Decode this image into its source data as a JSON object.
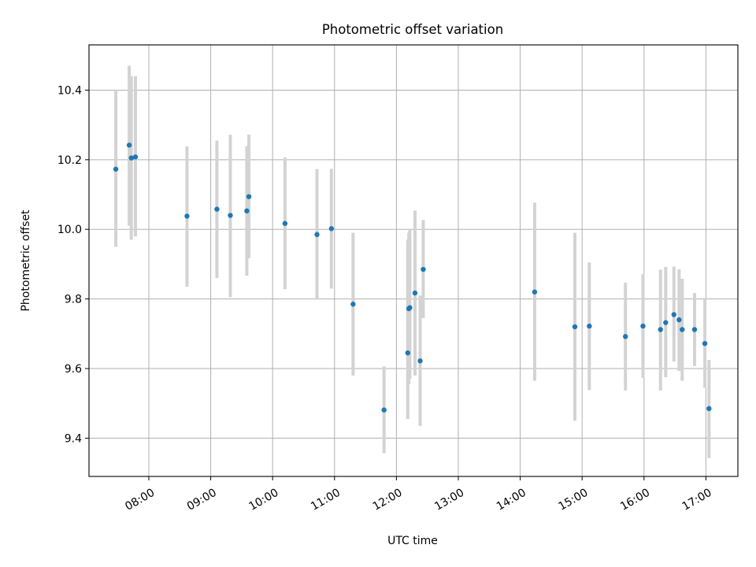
{
  "chart_data": {
    "type": "scatter",
    "title": "Photometric offset variation",
    "xlabel": "UTC time",
    "ylabel": "Photometric offset",
    "xlim": [
      "07:02",
      "17:31"
    ],
    "ylim": [
      9.29,
      10.53
    ],
    "grid": true,
    "x_ticks": [
      "08:00",
      "09:00",
      "10:00",
      "11:00",
      "12:00",
      "13:00",
      "14:00",
      "15:00",
      "16:00",
      "17:00"
    ],
    "y_ticks": [
      9.4,
      9.6,
      9.8,
      10.0,
      10.2,
      10.4
    ],
    "y_tick_labels": [
      "9.4",
      "9.6",
      "9.8",
      "10.0",
      "10.2",
      "10.4"
    ],
    "colors": {
      "points": "#1f77b4",
      "error_bars": "#d3d3d3",
      "grid": "#b0b0b0"
    },
    "points": [
      {
        "x": "07:28",
        "y": 10.173,
        "err_low": 9.95,
        "err_high": 10.4
      },
      {
        "x": "07:41",
        "y": 10.242,
        "err_low": 10.01,
        "err_high": 10.47
      },
      {
        "x": "07:43",
        "y": 10.205,
        "err_low": 9.97,
        "err_high": 10.44
      },
      {
        "x": "07:47",
        "y": 10.208,
        "err_low": 9.98,
        "err_high": 10.44
      },
      {
        "x": "08:37",
        "y": 10.038,
        "err_low": 9.835,
        "err_high": 10.238
      },
      {
        "x": "09:06",
        "y": 10.058,
        "err_low": 9.86,
        "err_high": 10.255
      },
      {
        "x": "09:19",
        "y": 10.04,
        "err_low": 9.805,
        "err_high": 10.272
      },
      {
        "x": "09:35",
        "y": 10.053,
        "err_low": 9.867,
        "err_high": 10.239
      },
      {
        "x": "09:37",
        "y": 10.094,
        "err_low": 9.917,
        "err_high": 10.272
      },
      {
        "x": "10:12",
        "y": 10.017,
        "err_low": 9.828,
        "err_high": 10.207
      },
      {
        "x": "10:43",
        "y": 9.985,
        "err_low": 9.8,
        "err_high": 10.173
      },
      {
        "x": "10:57",
        "y": 10.002,
        "err_low": 9.83,
        "err_high": 10.174
      },
      {
        "x": "11:18",
        "y": 9.785,
        "err_low": 9.58,
        "err_high": 9.99
      },
      {
        "x": "11:48",
        "y": 9.481,
        "err_low": 9.357,
        "err_high": 9.606
      },
      {
        "x": "12:11",
        "y": 9.645,
        "err_low": 9.455,
        "err_high": 9.97
      },
      {
        "x": "12:12",
        "y": 9.772,
        "err_low": 9.555,
        "err_high": 9.99
      },
      {
        "x": "12:13",
        "y": 9.775,
        "err_low": 9.57,
        "err_high": 10.0
      },
      {
        "x": "12:18",
        "y": 9.817,
        "err_low": 9.58,
        "err_high": 10.054
      },
      {
        "x": "12:23",
        "y": 9.622,
        "err_low": 9.435,
        "err_high": 9.81
      },
      {
        "x": "12:26",
        "y": 9.885,
        "err_low": 9.745,
        "err_high": 10.027
      },
      {
        "x": "14:14",
        "y": 9.82,
        "err_low": 9.565,
        "err_high": 10.077
      },
      {
        "x": "14:53",
        "y": 9.72,
        "err_low": 9.45,
        "err_high": 9.99
      },
      {
        "x": "15:07",
        "y": 9.722,
        "err_low": 9.538,
        "err_high": 9.905
      },
      {
        "x": "15:42",
        "y": 9.692,
        "err_low": 9.537,
        "err_high": 9.847
      },
      {
        "x": "15:59",
        "y": 9.722,
        "err_low": 9.573,
        "err_high": 9.871
      },
      {
        "x": "16:16",
        "y": 9.712,
        "err_low": 9.537,
        "err_high": 9.884
      },
      {
        "x": "16:21",
        "y": 9.732,
        "err_low": 9.575,
        "err_high": 9.892
      },
      {
        "x": "16:29",
        "y": 9.755,
        "err_low": 9.62,
        "err_high": 9.893
      },
      {
        "x": "16:34",
        "y": 9.74,
        "err_low": 9.593,
        "err_high": 9.885
      },
      {
        "x": "16:37",
        "y": 9.712,
        "err_low": 9.565,
        "err_high": 9.858
      },
      {
        "x": "16:49",
        "y": 9.712,
        "err_low": 9.607,
        "err_high": 9.817
      },
      {
        "x": "16:59",
        "y": 9.672,
        "err_low": 9.545,
        "err_high": 9.8
      },
      {
        "x": "17:03",
        "y": 9.485,
        "err_low": 9.343,
        "err_high": 9.625
      }
    ]
  }
}
